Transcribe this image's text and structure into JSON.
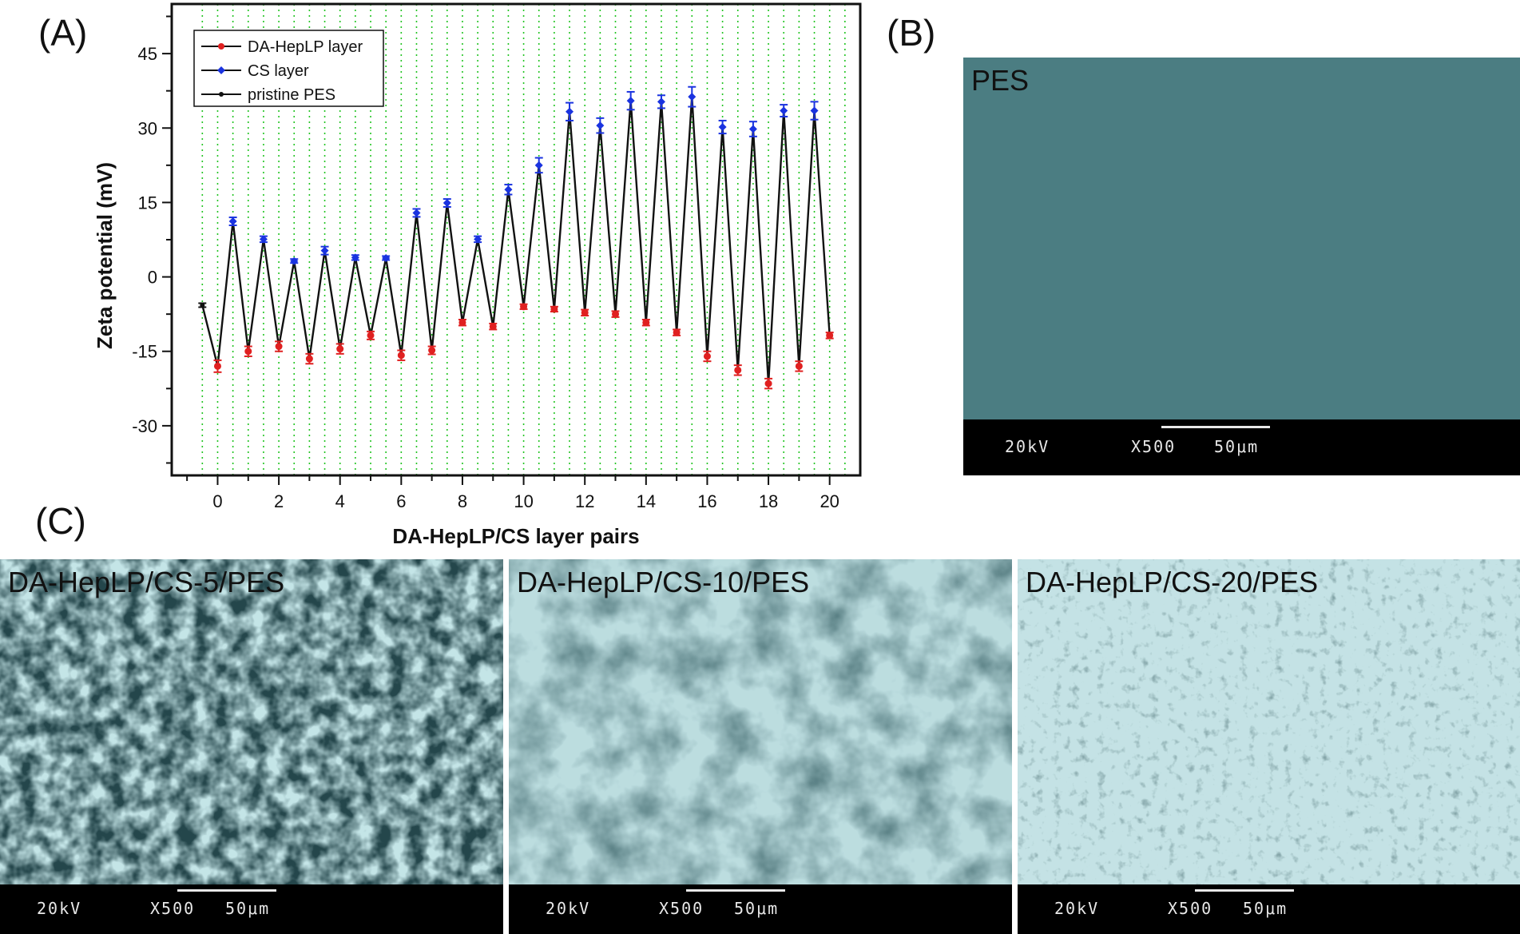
{
  "panels": {
    "a_label": "(A)",
    "b_label": "(B)",
    "c_label": "(C)"
  },
  "chart_data": {
    "type": "line",
    "xlabel": "DA-HepLP/CS layer pairs",
    "ylabel": "Zeta potential (mV)",
    "xlim": [
      -1.5,
      21
    ],
    "ylim": [
      -40,
      55
    ],
    "x_ticks": [
      0,
      2,
      4,
      6,
      8,
      10,
      12,
      14,
      16,
      18,
      20
    ],
    "y_ticks": [
      -30,
      -15,
      0,
      15,
      30,
      45
    ],
    "grid": "vertical dotted green lines at every 0.5 layer pair",
    "legend_position": "top-left",
    "series": [
      {
        "name": "DA-HepLP layer",
        "color": "#e02020",
        "marker": "circle",
        "x": [
          0,
          1,
          2,
          3,
          4,
          5,
          6,
          7,
          8,
          9,
          10,
          11,
          12,
          13,
          14,
          15,
          16,
          17,
          18,
          19,
          20
        ],
        "y": [
          -18,
          -15,
          -14,
          -16.5,
          -14.5,
          -11.8,
          -15.8,
          -14.8,
          -9.2,
          -10,
          -6,
          -6.5,
          -7.2,
          -7.5,
          -9.2,
          -11.2,
          -16,
          -18.8,
          -21.5,
          -18,
          -11.8
        ],
        "err": [
          1.2,
          1,
          1,
          1,
          1,
          0.8,
          1,
          0.8,
          0.6,
          0.6,
          0.5,
          0.5,
          0.6,
          0.6,
          0.6,
          0.6,
          1,
          1,
          1,
          1,
          0.6
        ]
      },
      {
        "name": "CS layer",
        "color": "#1a33e0",
        "marker": "diamond",
        "x": [
          0.5,
          1.5,
          2.5,
          3.5,
          4.5,
          5.5,
          6.5,
          7.5,
          8.5,
          9.5,
          10.5,
          11.5,
          12.5,
          13.5,
          14.5,
          15.5,
          16.5,
          17.5,
          18.5,
          19.5
        ],
        "y": [
          11.2,
          7.6,
          3.2,
          5.3,
          3.9,
          3.8,
          12.9,
          14.9,
          7.6,
          17.6,
          22.5,
          33.3,
          30.5,
          35.5,
          35.3,
          36.3,
          30.2,
          29.8,
          33.5,
          33.5
        ],
        "err": [
          0.8,
          0.6,
          0.4,
          0.8,
          0.5,
          0.4,
          0.8,
          0.8,
          0.6,
          1,
          1.5,
          1.8,
          1.5,
          1.8,
          1.3,
          2,
          1.3,
          1.5,
          1.2,
          1.8
        ]
      },
      {
        "name": "pristine PES",
        "color": "#111111",
        "marker": "star",
        "x": [
          -0.5
        ],
        "y": [
          -5.7
        ],
        "err": [
          0.4
        ]
      }
    ]
  },
  "sem_b": {
    "title": "PES",
    "voltage": "20kV",
    "magnification": "X500",
    "scale": "50μm"
  },
  "sem_c": [
    {
      "title": "DA-HepLP/CS-5/PES",
      "voltage": "20kV",
      "magnification": "X500",
      "scale": "50μm"
    },
    {
      "title": "DA-HepLP/CS-10/PES",
      "voltage": "20kV",
      "magnification": "X500",
      "scale": "50μm"
    },
    {
      "title": "DA-HepLP/CS-20/PES",
      "voltage": "20kV",
      "magnification": "X500",
      "scale": "50μm"
    }
  ]
}
